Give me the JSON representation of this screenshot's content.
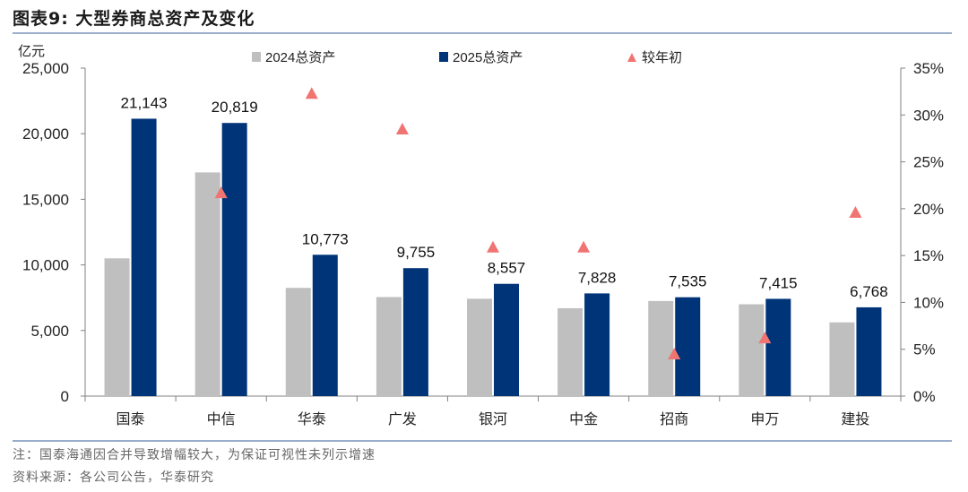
{
  "header": {
    "title": "图表9:   大型券商总资产及变化"
  },
  "chart_data": {
    "type": "bar",
    "unit_label": "亿元",
    "categories": [
      "国泰",
      "中信",
      "华泰",
      "广发",
      "银河",
      "中金",
      "招商",
      "申万",
      "建投"
    ],
    "series": [
      {
        "name": "2024总资产",
        "color": "#bfbfbf",
        "values": [
          10500,
          17050,
          8250,
          7550,
          7420,
          6700,
          7250,
          7000,
          5620
        ]
      },
      {
        "name": "2025总资产",
        "color": "#003478",
        "values": [
          21143,
          20819,
          10773,
          9755,
          8557,
          7828,
          7535,
          7415,
          6768
        ]
      },
      {
        "name": "较年初",
        "color": "#f07472",
        "marker": "triangle",
        "axis": "right",
        "values": [
          null,
          21.7,
          32.3,
          28.5,
          15.9,
          15.9,
          4.5,
          6.2,
          19.6
        ]
      }
    ],
    "data_labels": [
      "21,143",
      "20,819",
      "10,773",
      "9,755",
      "8,557",
      "7,828",
      "7,535",
      "7,415",
      "6,768"
    ],
    "y_left": {
      "min": 0,
      "max": 25000,
      "ticks": [
        0,
        5000,
        10000,
        15000,
        20000,
        25000
      ],
      "tick_labels": [
        "0",
        "5,000",
        "10,000",
        "15,000",
        "20,000",
        "25,000"
      ]
    },
    "y_right": {
      "min": 0,
      "max": 35,
      "ticks": [
        0,
        5,
        10,
        15,
        20,
        25,
        30,
        35
      ],
      "tick_labels": [
        "0%",
        "5%",
        "10%",
        "15%",
        "20%",
        "25%",
        "30%",
        "35%"
      ]
    },
    "legend_position": "top"
  },
  "notes": {
    "note": "注：国泰海通因合并导致增幅较大，为保证可视性未列示增速",
    "source": "资料来源：各公司公告，华泰研究"
  }
}
